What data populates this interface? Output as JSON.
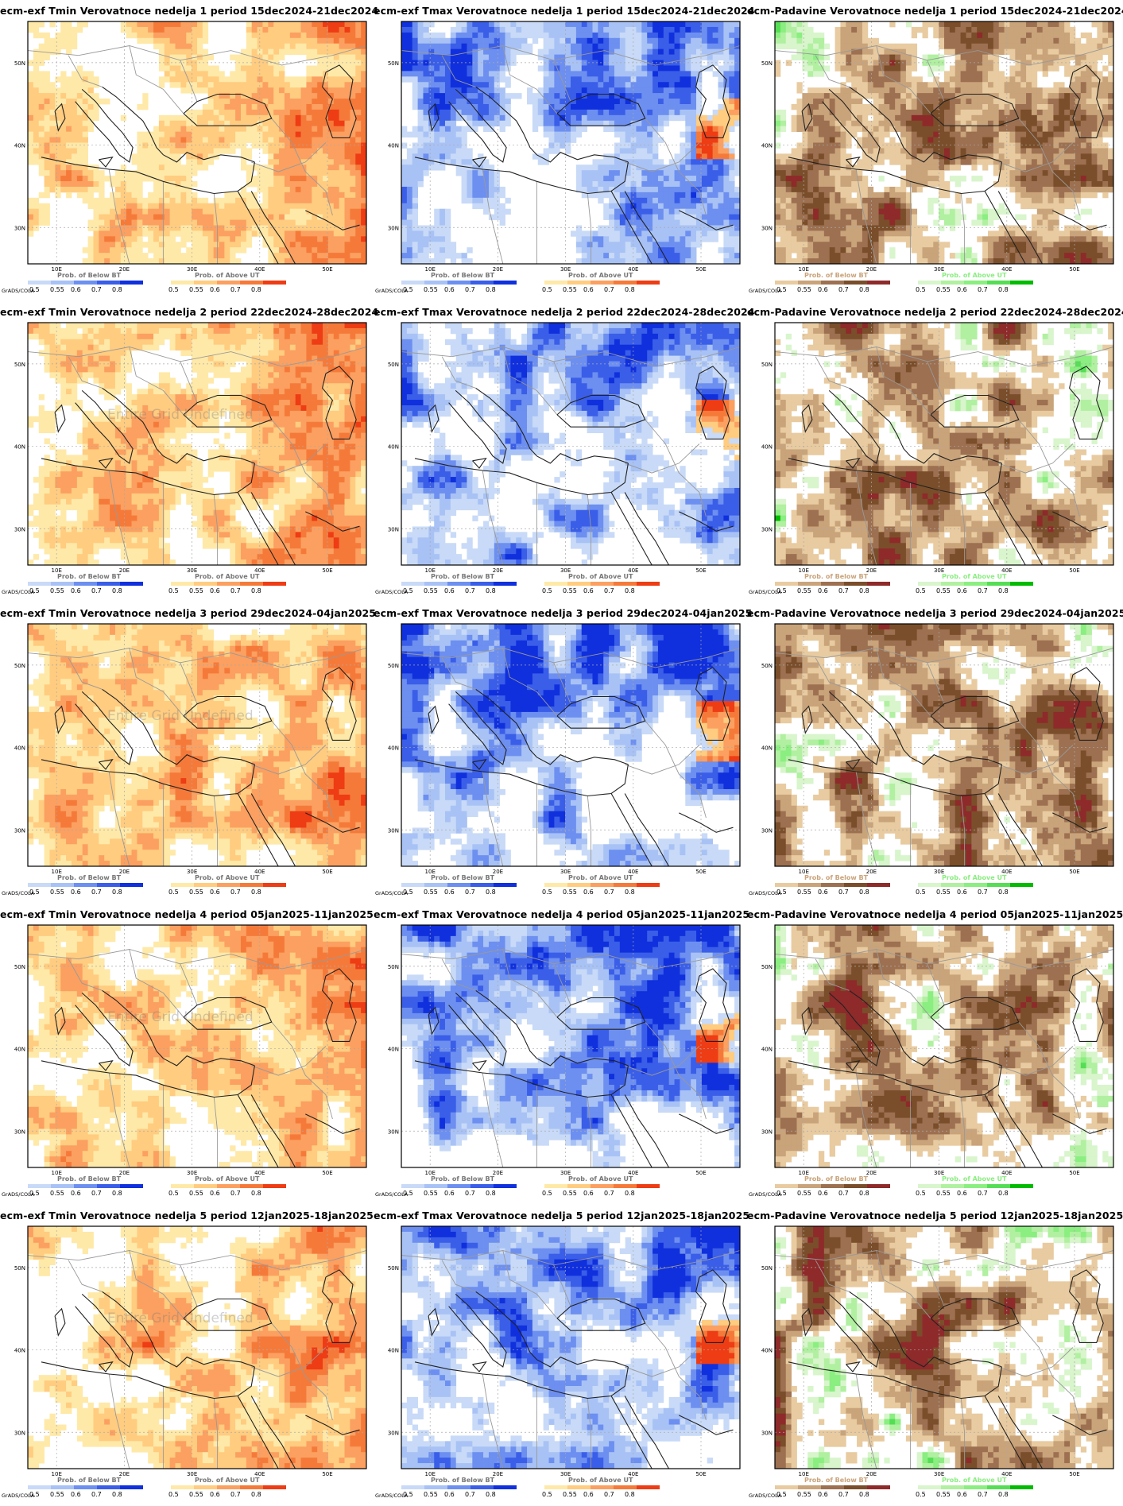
{
  "footer_label": "GrADS/COLA",
  "below_label": "Prob. of Below BT",
  "above_label": "Prob. of Above UT",
  "undefined_label": "Entire Grid Undefined",
  "tick_values": [
    "0.5",
    "0.55",
    "0.6",
    "0.7",
    "0.8"
  ],
  "lat_labels": [
    "50N",
    "40N",
    "30N"
  ],
  "lon_labels": [
    "10E",
    "20E",
    "30E",
    "40E",
    "50E"
  ],
  "palettes": {
    "cold": [
      "#c8daf7",
      "#a8c2f5",
      "#6d8ff0",
      "#3a5ee8",
      "#1030dd"
    ],
    "warm": [
      "#ffe9a8",
      "#ffcc80",
      "#fba060",
      "#f57a3a",
      "#ee3c14"
    ],
    "dry": [
      "#e8cba0",
      "#c9a37a",
      "#9c7050",
      "#7a4e2a",
      "#8e2a2a"
    ],
    "wet": [
      "#d8f5cc",
      "#b0f0a0",
      "#8aee80",
      "#55dd55",
      "#00bb00"
    ]
  },
  "rows": [
    {
      "panels": [
        {
          "title": "ecm-exf Tmin Verovatnoce nedelja 1 period 15dec2024-21dec2024",
          "variable": "tmin",
          "undefined": false
        },
        {
          "title": "ecm-exf Tmax Verovatnoce nedelja 1 period 15dec2024-21dec2024",
          "variable": "tmax",
          "undefined": false
        },
        {
          "title": "ecm-Padavine Verovatnoce nedelja 1 period 15dec2024-21dec2024",
          "variable": "precip",
          "undefined": false
        }
      ]
    },
    {
      "panels": [
        {
          "title": "ecm-exf Tmin Verovatnoce nedelja 2 period 22dec2024-28dec2024",
          "variable": "tmin",
          "undefined": true
        },
        {
          "title": "ecm-exf Tmax Verovatnoce nedelja 2 period 22dec2024-28dec2024",
          "variable": "tmax",
          "undefined": false
        },
        {
          "title": "ecm-Padavine Verovatnoce nedelja 2 period 22dec2024-28dec2024",
          "variable": "precip",
          "undefined": false
        }
      ]
    },
    {
      "panels": [
        {
          "title": "ecm-exf Tmin Verovatnoce nedelja 3 period 29dec2024-04jan2025",
          "variable": "tmin",
          "undefined": true
        },
        {
          "title": "ecm-exf Tmax Verovatnoce nedelja 3 period 29dec2024-04jan2025",
          "variable": "tmax",
          "undefined": false
        },
        {
          "title": "ecm-Padavine Verovatnoce nedelja 3 period 29dec2024-04jan2025",
          "variable": "precip",
          "undefined": false
        }
      ]
    },
    {
      "panels": [
        {
          "title": "ecm-exf Tmin Verovatnoce nedelja 4 period 05jan2025-11jan2025",
          "variable": "tmin",
          "undefined": true
        },
        {
          "title": "ecm-exf Tmax Verovatnoce nedelja 4 period 05jan2025-11jan2025",
          "variable": "tmax",
          "undefined": false
        },
        {
          "title": "ecm-Padavine Verovatnoce nedelja 4 period 05jan2025-11jan2025",
          "variable": "precip",
          "undefined": false
        }
      ]
    },
    {
      "panels": [
        {
          "title": "ecm-exf Tmin Verovatnoce nedelja 5 period 12jan2025-18jan2025",
          "variable": "tmin",
          "undefined": true
        },
        {
          "title": "ecm-exf Tmax Verovatnoce nedelja 5 period 12jan2025-18jan2025",
          "variable": "tmax",
          "undefined": false
        },
        {
          "title": "ecm-Padavine Verovatnoce nedelja 5 period 12jan2025-18jan2025",
          "variable": "precip",
          "undefined": false
        }
      ]
    }
  ]
}
